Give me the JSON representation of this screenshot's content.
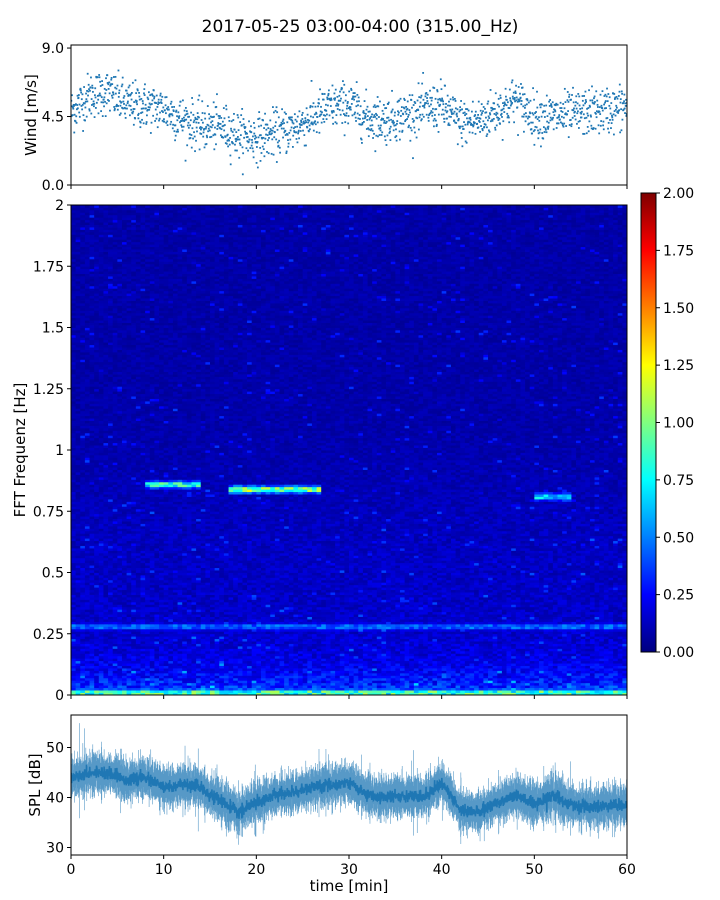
{
  "title": "2017-05-25 03:00-04:00 (315.00_Hz)",
  "colors": {
    "series": "#1f77b4",
    "colormap": "jet"
  },
  "chart_data": [
    {
      "type": "scatter",
      "panel": "wind",
      "ylabel": "Wind [m/s]",
      "xlim": [
        0,
        60
      ],
      "ylim": [
        0,
        9.2
      ],
      "yticks": [
        0,
        4.5,
        9
      ],
      "ytick_labels": [
        "0.0",
        "4.5",
        "9.0"
      ],
      "x_tick_labels_shown": false,
      "series": [
        {
          "x": [
            0,
            2,
            4,
            6,
            8,
            10,
            12,
            14,
            16,
            18,
            20,
            22,
            24,
            26,
            28,
            30,
            32,
            34,
            36,
            38,
            40,
            42,
            44,
            46,
            48,
            50,
            52,
            54,
            56,
            58,
            60
          ],
          "mean": [
            4.8,
            5.9,
            6.1,
            5.3,
            5.2,
            5.0,
            4.3,
            3.8,
            3.9,
            3.3,
            3.1,
            3.4,
            3.7,
            4.4,
            5.1,
            5.3,
            4.4,
            4.3,
            4.6,
            5.0,
            5.2,
            4.1,
            4.2,
            4.9,
            5.6,
            4.5,
            4.5,
            4.6,
            4.8,
            4.9,
            5.2
          ]
        }
      ]
    },
    {
      "type": "heatmap",
      "panel": "spectrogram",
      "ylabel": "FFT Frequenz [Hz]",
      "xlim": [
        0,
        60
      ],
      "ylim": [
        0,
        2
      ],
      "yticks": [
        0,
        0.25,
        0.5,
        0.75,
        1,
        1.25,
        1.5,
        1.75,
        2
      ],
      "ytick_labels": [
        "0",
        "0.25",
        "0.5",
        "0.75",
        "1",
        "1.25",
        "1.5",
        "1.75",
        "2"
      ],
      "colorbar": {
        "range": [
          0,
          2
        ],
        "ticks": [
          0,
          0.25,
          0.5,
          0.75,
          1,
          1.25,
          1.5,
          1.75,
          2
        ],
        "tick_labels": [
          "0.00",
          "0.25",
          "0.50",
          "0.75",
          "1.00",
          "1.25",
          "1.50",
          "1.75",
          "2.00"
        ]
      },
      "features": [
        {
          "x": [
            8,
            14
          ],
          "freq": 0.86,
          "value": 1.0
        },
        {
          "x": [
            17,
            27
          ],
          "freq": 0.84,
          "value": 1.25
        },
        {
          "x": [
            50,
            54
          ],
          "freq": 0.81,
          "value": 0.85
        },
        {
          "x": [
            0,
            60
          ],
          "freq": 0.01,
          "value": 1.1
        },
        {
          "x": [
            0,
            60
          ],
          "freq": 0.28,
          "value": 0.55
        }
      ]
    },
    {
      "type": "area",
      "panel": "spl",
      "ylabel": "SPL [dB]",
      "xlabel": "time [min]",
      "xlim": [
        0,
        60
      ],
      "ylim": [
        28.5,
        56.5
      ],
      "yticks": [
        30,
        40,
        50
      ],
      "ytick_labels": [
        "30",
        "40",
        "50"
      ],
      "xticks": [
        0,
        10,
        20,
        30,
        40,
        50,
        60
      ],
      "xtick_labels": [
        "0",
        "10",
        "20",
        "30",
        "40",
        "50",
        "60"
      ],
      "series": [
        {
          "x": [
            0,
            2,
            4,
            6,
            8,
            10,
            12,
            14,
            16,
            18,
            20,
            22,
            24,
            26,
            28,
            30,
            32,
            34,
            36,
            38,
            40,
            42,
            44,
            46,
            48,
            50,
            52,
            54,
            56,
            58,
            60
          ],
          "mean": [
            44,
            45,
            45,
            43.5,
            44,
            42,
            42.5,
            42,
            39.5,
            37,
            39,
            40.5,
            41,
            42,
            42.5,
            43,
            40.5,
            40,
            40.5,
            40,
            43,
            37.5,
            37,
            39,
            40.5,
            38.5,
            40.5,
            38.5,
            38,
            38.5,
            38.5
          ]
        }
      ]
    }
  ]
}
